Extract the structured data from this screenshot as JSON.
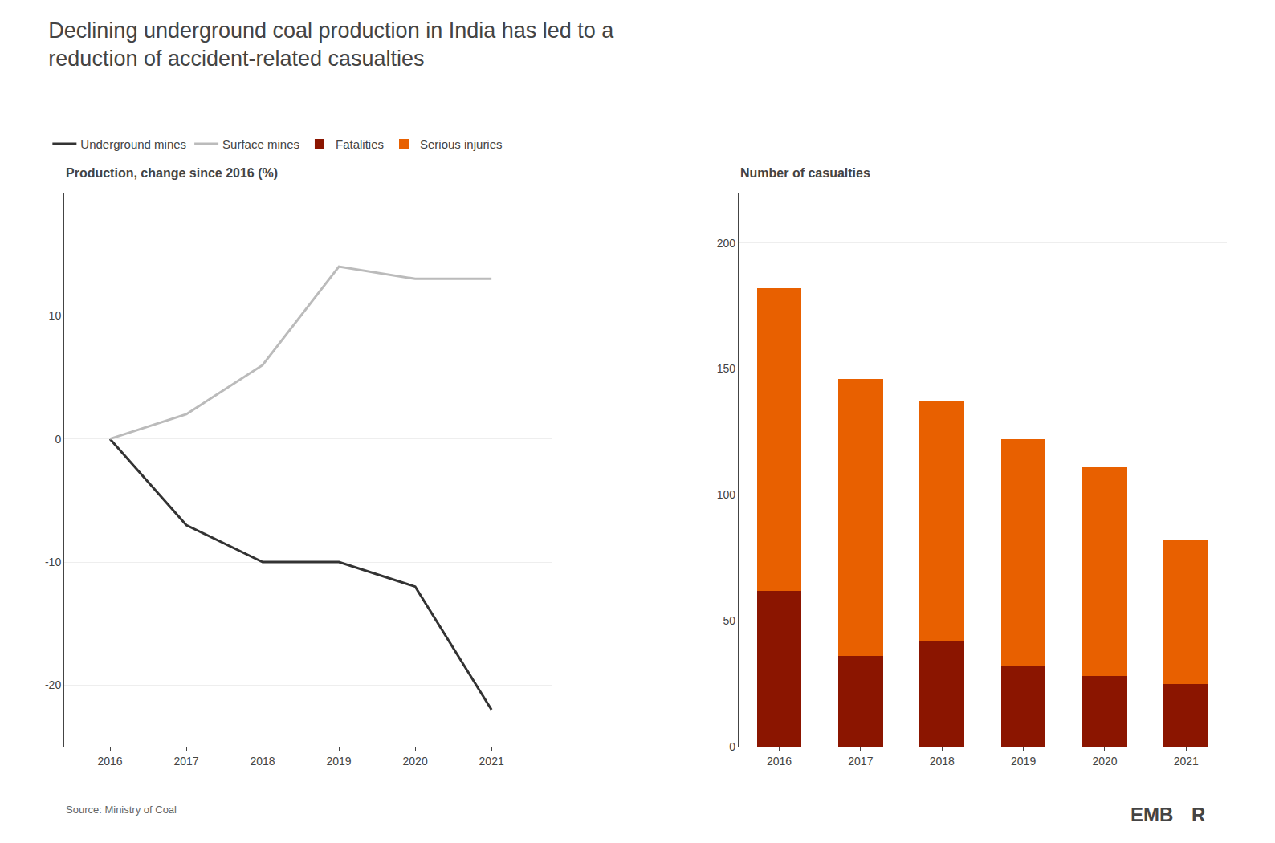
{
  "title": [
    "Declining underground coal production in India has led to a",
    "reduction of accident-related casualties"
  ],
  "annotations": [
    "Source: Ministry of Coal",
    "EMB",
    "R"
  ],
  "legend": "upper left",
  "chart_data": [
    {
      "type": "line",
      "title": "Production, change since 2016 (%)",
      "x": [
        2016,
        2017,
        2018,
        2019,
        2020,
        2021
      ],
      "series": [
        {
          "name": "Underground mines",
          "color": "#333333",
          "values": [
            0,
            -7,
            -10,
            -10,
            -12,
            -22
          ]
        },
        {
          "name": "Surface mines",
          "color": "#bbbbbb",
          "values": [
            0,
            2,
            6,
            14,
            13,
            13
          ]
        }
      ],
      "xlim": [
        2015.4,
        2021.8
      ],
      "xticks": [
        2016,
        2017,
        2018,
        2019,
        2020,
        2021
      ],
      "ylim": [
        -25,
        20
      ],
      "yticks": [
        -20,
        -10,
        0,
        10
      ],
      "grid": "y"
    },
    {
      "type": "bar",
      "title": "Number of casualties",
      "categories": [
        "2016",
        "2017",
        "2018",
        "2019",
        "2020",
        "2021"
      ],
      "series": [
        {
          "name": "Fatalities",
          "color": "#8B1500",
          "values": [
            62,
            36,
            42,
            32,
            28,
            25
          ]
        },
        {
          "name": "Serious injuries",
          "color": "#E86000",
          "values": [
            120,
            110,
            95,
            90,
            83,
            57
          ]
        }
      ],
      "stacked": true,
      "ylim": [
        0,
        220
      ],
      "yticks": [
        0,
        50,
        100,
        150,
        200
      ],
      "grid": "y"
    }
  ]
}
